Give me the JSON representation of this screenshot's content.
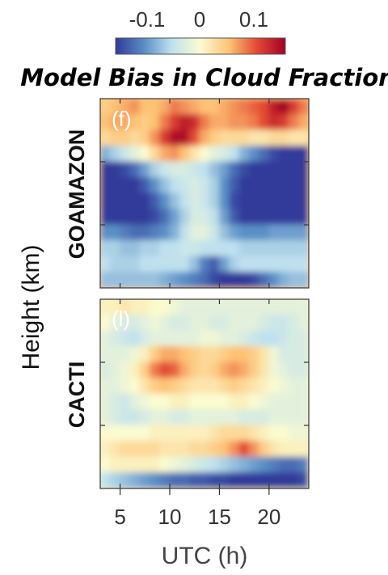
{
  "chart_data": {
    "type": "heatmap",
    "title": "Model Bias in Cloud Fraction",
    "colorbar": {
      "range": [
        -0.15,
        0.15
      ],
      "tick_labels": [
        "-0.1",
        "0",
        "0.1"
      ],
      "tick_values": [
        -0.1,
        0,
        0.1
      ],
      "colors": [
        "#313a9a",
        "#5a8fc6",
        "#bfe1ee",
        "#fbfbd0",
        "#fdc274",
        "#e34a33",
        "#a50026"
      ]
    },
    "xlabel": "UTC (h)",
    "ylabel": "Height (km)",
    "x_range": [
      3,
      24
    ],
    "x_ticks": [
      5,
      10,
      15,
      20
    ],
    "panels": [
      {
        "name": "GOAMAZON",
        "label": "(f)",
        "rows": 12,
        "cols": 21,
        "note": "cloud fraction bias on UTC x height grid, row 0 = top",
        "values": [
          [
            0.04,
            0.05,
            0.06,
            0.07,
            0.05,
            0.05,
            0.06,
            0.08,
            0.07,
            0.06,
            0.05,
            0.05,
            0.06,
            0.07,
            0.08,
            0.09,
            0.1,
            0.13,
            0.15,
            0.11,
            0.08
          ],
          [
            0.05,
            0.06,
            0.06,
            0.05,
            0.04,
            0.05,
            0.08,
            0.11,
            0.13,
            0.12,
            0.08,
            0.06,
            0.06,
            0.07,
            0.07,
            0.08,
            0.1,
            0.12,
            0.11,
            0.08,
            0.06
          ],
          [
            0.03,
            0.04,
            0.04,
            0.03,
            0.04,
            0.07,
            0.11,
            0.14,
            0.14,
            0.1,
            0.06,
            0.04,
            0.03,
            0.03,
            0.03,
            0.02,
            0.02,
            0.03,
            0.03,
            0.02,
            0.02
          ],
          [
            -0.08,
            -0.06,
            -0.04,
            -0.02,
            0.0,
            0.03,
            0.06,
            0.07,
            0.05,
            0.02,
            0.0,
            -0.02,
            -0.03,
            -0.05,
            -0.08,
            -0.1,
            -0.12,
            -0.14,
            -0.15,
            -0.15,
            -0.15
          ],
          [
            -0.15,
            -0.15,
            -0.14,
            -0.12,
            -0.09,
            -0.06,
            -0.04,
            -0.03,
            -0.03,
            -0.04,
            -0.05,
            -0.07,
            -0.09,
            -0.12,
            -0.14,
            -0.15,
            -0.15,
            -0.15,
            -0.15,
            -0.15,
            -0.15
          ],
          [
            -0.15,
            -0.15,
            -0.15,
            -0.15,
            -0.13,
            -0.1,
            -0.07,
            -0.05,
            -0.04,
            -0.03,
            -0.04,
            -0.06,
            -0.1,
            -0.13,
            -0.15,
            -0.15,
            -0.15,
            -0.15,
            -0.15,
            -0.15,
            -0.15
          ],
          [
            -0.15,
            -0.15,
            -0.15,
            -0.15,
            -0.15,
            -0.13,
            -0.1,
            -0.07,
            -0.05,
            -0.03,
            -0.04,
            -0.06,
            -0.1,
            -0.14,
            -0.15,
            -0.15,
            -0.15,
            -0.15,
            -0.15,
            -0.15,
            -0.15
          ],
          [
            -0.15,
            -0.15,
            -0.15,
            -0.15,
            -0.15,
            -0.14,
            -0.12,
            -0.09,
            -0.06,
            -0.03,
            -0.03,
            -0.05,
            -0.09,
            -0.13,
            -0.15,
            -0.15,
            -0.15,
            -0.15,
            -0.15,
            -0.15,
            -0.15
          ],
          [
            -0.1,
            -0.1,
            -0.11,
            -0.12,
            -0.12,
            -0.11,
            -0.1,
            -0.08,
            -0.05,
            -0.02,
            -0.02,
            -0.04,
            -0.07,
            -0.09,
            -0.1,
            -0.1,
            -0.1,
            -0.09,
            -0.09,
            -0.09,
            -0.09
          ],
          [
            -0.06,
            -0.06,
            -0.07,
            -0.07,
            -0.06,
            -0.06,
            -0.05,
            -0.05,
            -0.04,
            -0.04,
            -0.05,
            -0.05,
            -0.05,
            -0.05,
            -0.06,
            -0.06,
            -0.06,
            -0.06,
            -0.06,
            -0.06,
            -0.06
          ],
          [
            -0.05,
            -0.06,
            -0.06,
            -0.06,
            -0.05,
            -0.05,
            -0.05,
            -0.05,
            -0.05,
            -0.07,
            -0.11,
            -0.13,
            -0.09,
            -0.06,
            -0.05,
            -0.05,
            -0.05,
            -0.05,
            -0.05,
            -0.05,
            -0.05
          ],
          [
            -0.07,
            -0.07,
            -0.07,
            -0.07,
            -0.07,
            -0.07,
            -0.08,
            -0.09,
            -0.1,
            -0.11,
            -0.12,
            -0.14,
            -0.15,
            -0.15,
            -0.15,
            -0.14,
            -0.12,
            -0.1,
            -0.08,
            -0.07,
            -0.07
          ]
        ]
      },
      {
        "name": "CACTI",
        "label": "(l)",
        "rows": 12,
        "cols": 21,
        "note": "cloud fraction bias on UTC x height grid, row 0 = top",
        "values": [
          [
            0.01,
            0.01,
            0.02,
            0.01,
            0.01,
            0.0,
            0.0,
            -0.01,
            -0.02,
            -0.02,
            -0.02,
            -0.02,
            -0.02,
            -0.02,
            -0.02,
            -0.02,
            -0.02,
            -0.02,
            -0.02,
            -0.02,
            -0.02
          ],
          [
            0.0,
            -0.02,
            -0.03,
            -0.03,
            -0.02,
            -0.01,
            -0.02,
            -0.03,
            -0.03,
            -0.02,
            -0.02,
            -0.03,
            -0.03,
            -0.02,
            -0.02,
            -0.02,
            -0.03,
            -0.04,
            -0.04,
            -0.03,
            -0.02
          ],
          [
            -0.02,
            -0.03,
            -0.04,
            -0.05,
            -0.03,
            -0.02,
            -0.02,
            -0.02,
            -0.02,
            -0.02,
            -0.01,
            -0.01,
            -0.02,
            -0.02,
            -0.03,
            -0.04,
            -0.05,
            -0.05,
            -0.04,
            -0.03,
            -0.03
          ],
          [
            -0.02,
            -0.02,
            -0.02,
            -0.01,
            0.01,
            0.04,
            0.06,
            0.06,
            0.05,
            0.04,
            0.03,
            0.03,
            0.04,
            0.05,
            0.05,
            0.04,
            0.02,
            -0.01,
            -0.03,
            -0.03,
            -0.03
          ],
          [
            -0.03,
            -0.02,
            -0.01,
            0.01,
            0.04,
            0.08,
            0.1,
            0.09,
            0.06,
            0.04,
            0.03,
            0.04,
            0.06,
            0.07,
            0.06,
            0.04,
            0.02,
            -0.01,
            -0.02,
            -0.03,
            -0.03
          ],
          [
            -0.02,
            -0.02,
            -0.01,
            0.0,
            0.02,
            0.04,
            0.05,
            0.04,
            0.03,
            0.02,
            0.02,
            0.02,
            0.03,
            0.04,
            0.03,
            0.02,
            0.01,
            0.0,
            -0.01,
            -0.02,
            -0.02
          ],
          [
            -0.02,
            -0.03,
            -0.04,
            -0.02,
            -0.01,
            0.0,
            0.0,
            0.01,
            0.01,
            0.0,
            0.0,
            0.0,
            0.0,
            0.01,
            0.01,
            0.0,
            -0.01,
            -0.02,
            -0.02,
            -0.02,
            -0.02
          ],
          [
            -0.02,
            -0.03,
            -0.04,
            -0.04,
            -0.03,
            -0.02,
            -0.02,
            -0.03,
            -0.03,
            -0.02,
            -0.02,
            -0.02,
            -0.02,
            -0.02,
            -0.03,
            -0.03,
            -0.03,
            -0.02,
            -0.02,
            -0.02,
            -0.02
          ],
          [
            0.0,
            0.0,
            0.0,
            0.0,
            0.0,
            0.01,
            0.01,
            0.01,
            0.01,
            0.01,
            0.01,
            0.02,
            0.03,
            0.03,
            0.03,
            0.02,
            0.01,
            0.0,
            0.0,
            -0.01,
            -0.01
          ],
          [
            0.01,
            0.02,
            0.03,
            0.03,
            0.03,
            0.03,
            0.02,
            0.02,
            0.02,
            0.03,
            0.03,
            0.04,
            0.05,
            0.07,
            0.1,
            0.07,
            0.04,
            0.02,
            0.01,
            0.01,
            0.01
          ],
          [
            0.0,
            0.01,
            0.01,
            0.01,
            0.01,
            0.01,
            0.0,
            -0.01,
            -0.02,
            -0.03,
            -0.04,
            -0.05,
            -0.06,
            -0.07,
            -0.08,
            -0.09,
            -0.1,
            -0.11,
            -0.12,
            -0.12,
            -0.11
          ],
          [
            -0.05,
            -0.06,
            -0.07,
            -0.08,
            -0.09,
            -0.1,
            -0.11,
            -0.12,
            -0.12,
            -0.13,
            -0.13,
            -0.14,
            -0.14,
            -0.15,
            -0.15,
            -0.15,
            -0.15,
            -0.15,
            -0.15,
            -0.15,
            -0.14
          ]
        ]
      }
    ]
  }
}
